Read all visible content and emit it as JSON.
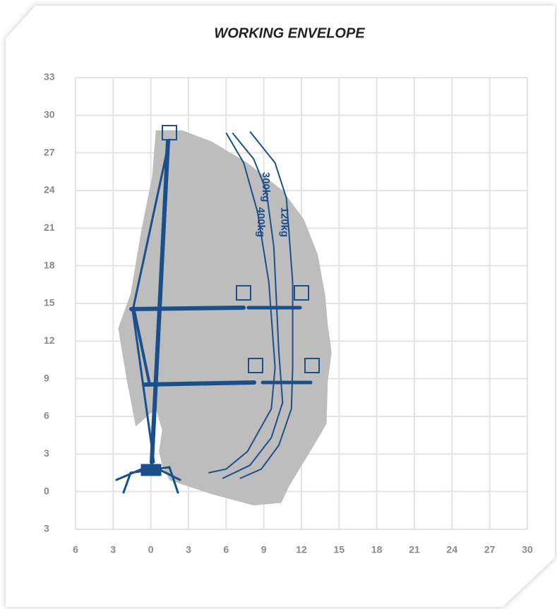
{
  "chart_data": {
    "type": "envelope",
    "title": "WORKING ENVELOPE",
    "xlim": [
      -6,
      30
    ],
    "ylim": [
      -3,
      33
    ],
    "xticks": [
      {
        "value": -6,
        "label": "6"
      },
      {
        "value": -3,
        "label": "3"
      },
      0,
      3,
      6,
      9,
      12,
      15,
      18,
      21,
      24,
      27,
      30
    ],
    "yticks": [
      {
        "value": -3,
        "label": "3"
      },
      0,
      3,
      6,
      9,
      12,
      15,
      18,
      21,
      24,
      27,
      30,
      33
    ],
    "grid": true,
    "envelope": {
      "color": "#bdbdbd",
      "x": [
        0.4,
        2.5,
        4.85,
        7.7,
        10.5,
        12.2,
        13.3,
        13.9,
        14.1,
        14.4,
        14.1,
        14.0,
        12.7,
        11.0,
        10.4,
        8.2,
        4.85,
        1.5,
        0.9,
        0.65,
        0.9,
        0.4,
        -1.2,
        -1.9,
        -2.6,
        -1.6,
        -0.8,
        0.1
      ],
      "y": [
        28.8,
        28.8,
        27.9,
        26.2,
        24.0,
        21.7,
        18.9,
        15.6,
        13.3,
        11.1,
        8.8,
        5.4,
        3.2,
        0.4,
        -0.9,
        -1.1,
        -0.2,
        0.9,
        2.1,
        3.2,
        4.9,
        6.6,
        5.2,
        8.8,
        13.0,
        15.8,
        20.6,
        25.1
      ]
    },
    "series": [
      {
        "name": "400kg",
        "color": "#1b4f8a",
        "x": [
          6.0,
          7.4,
          8.5,
          9.4,
          9.9,
          9.6,
          7.7,
          6.0,
          4.6
        ],
        "values": [
          28.6,
          26.2,
          22.3,
          16.7,
          9.9,
          6.6,
          3.2,
          1.8,
          1.5
        ]
      },
      {
        "name": "300kg",
        "color": "#1b4f8a",
        "x": [
          6.5,
          8.2,
          9.2,
          9.8,
          10.2,
          10.5,
          9.6,
          7.9,
          5.7
        ],
        "values": [
          28.6,
          26.5,
          24.0,
          19.5,
          11.1,
          7.1,
          4.3,
          2.1,
          1.05
        ]
      },
      {
        "name": "120kg",
        "color": "#1b4f8a",
        "x": [
          7.9,
          9.9,
          10.8,
          11.3,
          11.3,
          11.2,
          10.2,
          8.8,
          7.1
        ],
        "values": [
          28.7,
          26.2,
          23.4,
          16.7,
          9.9,
          6.6,
          3.7,
          1.8,
          1.05
        ]
      }
    ]
  }
}
